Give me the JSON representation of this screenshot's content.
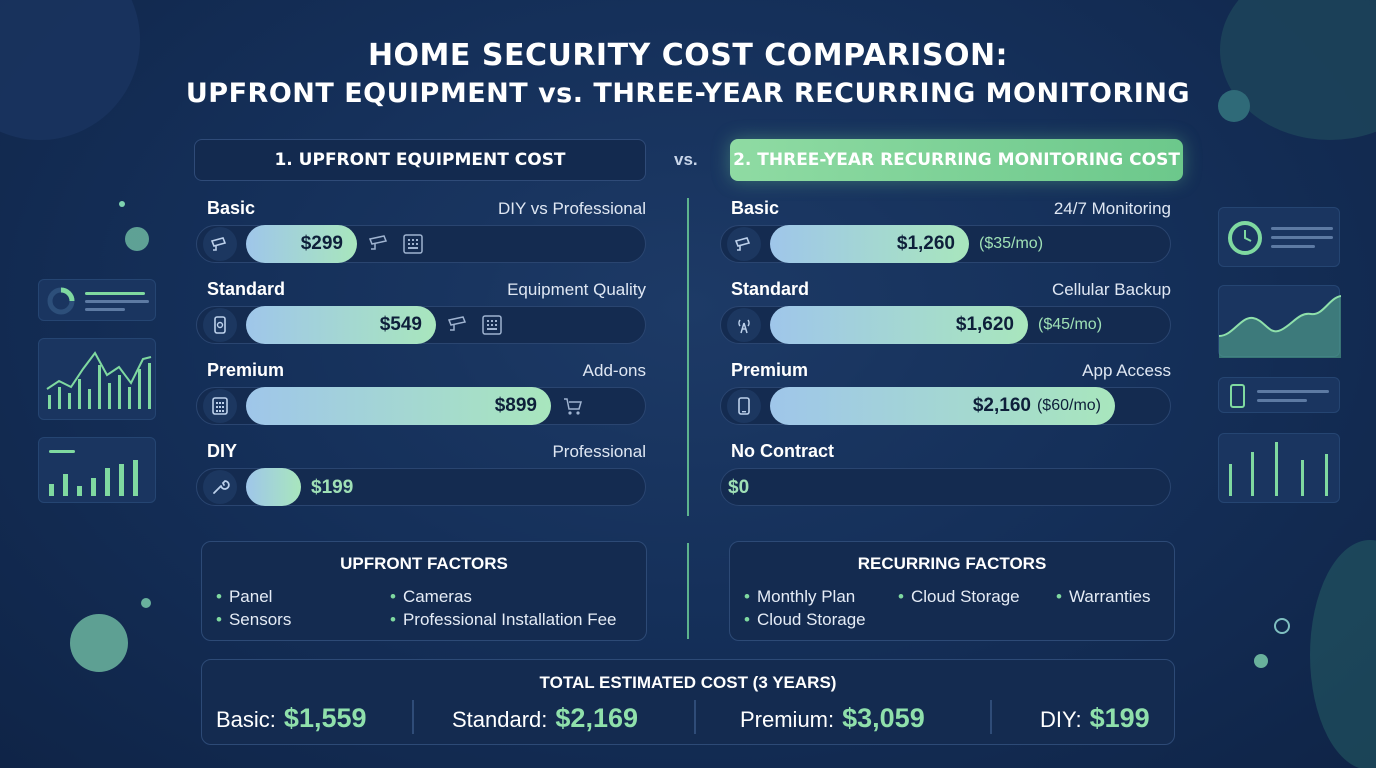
{
  "title": {
    "line1": "HOME SECURITY COST COMPARISON:",
    "line2": "UPFRONT EQUIPMENT vs. THREE-YEAR RECURRING MONITORING"
  },
  "vs_label": "vs.",
  "upfront": {
    "header": "1. UPFRONT EQUIPMENT COST",
    "rows": [
      {
        "label": "Basic",
        "note": "DIY vs Professional",
        "value": "$299",
        "fraction": 0.28,
        "icon": "camera-icon"
      },
      {
        "label": "Standard",
        "note": "Equipment Quality",
        "value": "$549",
        "fraction": 0.48,
        "icon": "sensor-icon"
      },
      {
        "label": "Premium",
        "note": "Add-ons",
        "value": "$899",
        "fraction": 0.77,
        "icon": "keypad-icon"
      },
      {
        "label": "DIY",
        "note": "Professional",
        "value": "$199",
        "fraction": 0.14,
        "icon": "wrench-icon"
      }
    ]
  },
  "recurring": {
    "header": "2. THREE-YEAR RECURRING MONITORING COST",
    "rows": [
      {
        "label": "Basic",
        "note": "24/7 Monitoring",
        "value": "$1,260",
        "monthly": "($35/mo)",
        "fraction": 0.5,
        "icon": "camera-icon"
      },
      {
        "label": "Standard",
        "note": "Cellular Backup",
        "value": "$1,620",
        "monthly": "($45/mo)",
        "fraction": 0.65,
        "icon": "signal-icon"
      },
      {
        "label": "Premium",
        "note": "App Access",
        "value": "$2,160",
        "monthly": "($60/mo)",
        "fraction": 0.87,
        "icon": "phone-icon"
      },
      {
        "label": "No Contract",
        "note": "",
        "value": "$0",
        "monthly": "",
        "fraction": 0,
        "icon": ""
      }
    ]
  },
  "upfront_factors": {
    "title": "UPFRONT FACTORS",
    "items": [
      "Panel",
      "Cameras",
      "Sensors",
      "Professional Installation Fee"
    ]
  },
  "recurring_factors": {
    "title": "RECURRING FACTORS",
    "items": [
      "Monthly Plan",
      "Cloud Storage",
      "Warranties",
      "Cloud Storage"
    ]
  },
  "totals": {
    "title": "TOTAL ESTIMATED COST (3 YEARS)",
    "items": [
      {
        "label": "Basic:",
        "value": "$1,559"
      },
      {
        "label": "Standard:",
        "value": "$2,169"
      },
      {
        "label": "Premium:",
        "value": "$3,059"
      },
      {
        "label": "DIY:",
        "value": "$199"
      }
    ]
  },
  "colors": {
    "accent": "#8fdba3",
    "background": "#15305a",
    "panel": "#142b50"
  }
}
